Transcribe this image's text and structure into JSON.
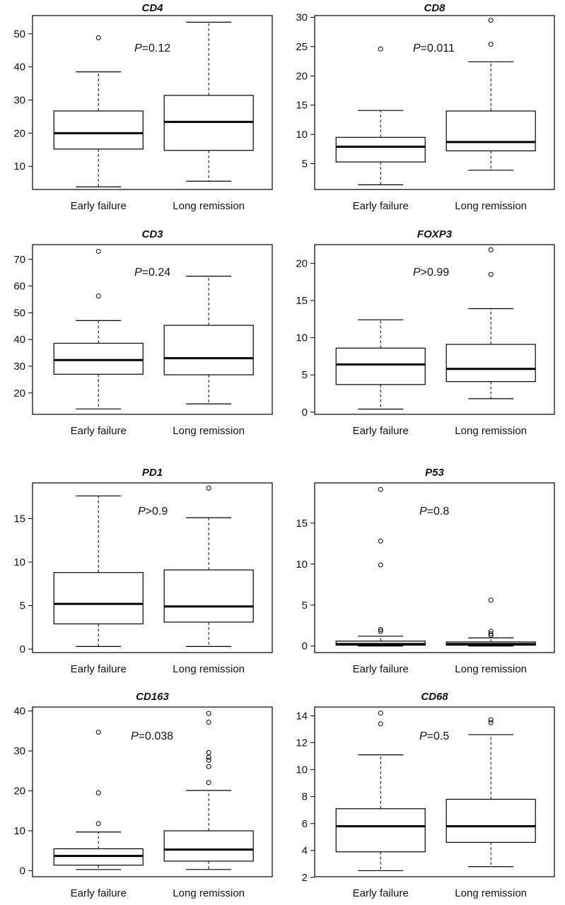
{
  "chart_data": [
    {
      "type": "boxplot",
      "title": "CD4",
      "categories": [
        "Early failure",
        "Long remission"
      ],
      "ylim": [
        3,
        55.5
      ],
      "yticks": [
        10,
        20,
        30,
        40,
        50
      ],
      "p_label": "P",
      "p_text": "=0.12",
      "boxes": [
        {
          "name": "Early failure",
          "whisker_low": 3.8,
          "q1": 15.2,
          "median": 20.0,
          "q3": 26.7,
          "whisker_high": 38.5,
          "outliers": [
            48.8
          ]
        },
        {
          "name": "Long remission",
          "whisker_low": 5.5,
          "q1": 14.8,
          "median": 23.4,
          "q3": 31.4,
          "whisker_high": 53.5,
          "outliers": []
        }
      ]
    },
    {
      "type": "boxplot",
      "title": "CD8",
      "categories": [
        "Early failure",
        "Long remission"
      ],
      "ylim": [
        0.6,
        30.3
      ],
      "yticks": [
        5,
        10,
        15,
        20,
        25,
        30
      ],
      "p_label": "P",
      "p_text": "=0.011",
      "boxes": [
        {
          "name": "Early failure",
          "whisker_low": 1.4,
          "q1": 5.3,
          "median": 7.9,
          "q3": 9.5,
          "whisker_high": 14.1,
          "outliers": [
            24.6
          ]
        },
        {
          "name": "Long remission",
          "whisker_low": 3.9,
          "q1": 7.2,
          "median": 8.7,
          "q3": 14.0,
          "whisker_high": 22.4,
          "outliers": [
            25.4,
            29.5
          ]
        }
      ]
    },
    {
      "type": "boxplot",
      "title": "CD3",
      "categories": [
        "Early failure",
        "Long remission"
      ],
      "ylim": [
        12,
        75.5
      ],
      "yticks": [
        20,
        30,
        40,
        50,
        60,
        70
      ],
      "p_label": "P",
      "p_text": "=0.24",
      "boxes": [
        {
          "name": "Early failure",
          "whisker_low": 14.0,
          "q1": 27.0,
          "median": 32.3,
          "q3": 38.6,
          "whisker_high": 47.1,
          "outliers": [
            56.3,
            73.0
          ]
        },
        {
          "name": "Long remission",
          "whisker_low": 15.9,
          "q1": 26.8,
          "median": 33.0,
          "q3": 45.3,
          "whisker_high": 63.7,
          "outliers": []
        }
      ]
    },
    {
      "type": "boxplot",
      "title": "FOXP3",
      "categories": [
        "Early failure",
        "Long remission"
      ],
      "ylim": [
        -0.3,
        22.5
      ],
      "yticks": [
        0,
        5,
        10,
        15,
        20
      ],
      "p_label": "P",
      "p_text": ">0.99",
      "boxes": [
        {
          "name": "Early failure",
          "whisker_low": 0.4,
          "q1": 3.7,
          "median": 6.4,
          "q3": 8.6,
          "whisker_high": 12.4,
          "outliers": []
        },
        {
          "name": "Long remission",
          "whisker_low": 1.8,
          "q1": 4.1,
          "median": 5.8,
          "q3": 9.1,
          "whisker_high": 13.9,
          "outliers": [
            18.5,
            21.8
          ]
        }
      ]
    },
    {
      "type": "boxplot",
      "title": "PD1",
      "categories": [
        "Early failure",
        "Long remission"
      ],
      "ylim": [
        -0.4,
        19.1
      ],
      "yticks": [
        0,
        5,
        10,
        15
      ],
      "p_label": "P",
      "p_text": ">0.9",
      "boxes": [
        {
          "name": "Early failure",
          "whisker_low": 0.3,
          "q1": 2.9,
          "median": 5.2,
          "q3": 8.8,
          "whisker_high": 17.6,
          "outliers": []
        },
        {
          "name": "Long remission",
          "whisker_low": 0.3,
          "q1": 3.1,
          "median": 4.9,
          "q3": 9.1,
          "whisker_high": 15.1,
          "outliers": [
            18.5
          ]
        }
      ]
    },
    {
      "type": "boxplot",
      "title": "P53",
      "categories": [
        "Early failure",
        "Long remission"
      ],
      "ylim": [
        -0.8,
        19.9
      ],
      "yticks": [
        0,
        5,
        10,
        15
      ],
      "p_label": "P",
      "p_text": "=0.8",
      "boxes": [
        {
          "name": "Early failure",
          "whisker_low": 0.0,
          "q1": 0.1,
          "median": 0.25,
          "q3": 0.6,
          "whisker_high": 1.2,
          "outliers": [
            1.8,
            2.0,
            9.9,
            12.8,
            19.1
          ]
        },
        {
          "name": "Long remission",
          "whisker_low": 0.0,
          "q1": 0.1,
          "median": 0.25,
          "q3": 0.5,
          "whisker_high": 1.0,
          "outliers": [
            1.3,
            1.5,
            1.8,
            5.6
          ]
        }
      ]
    },
    {
      "type": "boxplot",
      "title": "CD163",
      "categories": [
        "Early failure",
        "Long remission"
      ],
      "ylim": [
        -1.5,
        41
      ],
      "yticks": [
        0,
        10,
        20,
        30,
        40
      ],
      "p_label": "P",
      "p_text": "=0.038",
      "boxes": [
        {
          "name": "Early failure",
          "whisker_low": 0.3,
          "q1": 1.4,
          "median": 3.7,
          "q3": 5.5,
          "whisker_high": 9.7,
          "outliers": [
            11.8,
            19.5,
            34.7
          ]
        },
        {
          "name": "Long remission",
          "whisker_low": 0.3,
          "q1": 2.4,
          "median": 5.3,
          "q3": 10.0,
          "whisker_high": 20.1,
          "outliers": [
            22.1,
            26.1,
            27.7,
            28.4,
            29.6,
            37.2,
            39.4
          ]
        }
      ]
    },
    {
      "type": "boxplot",
      "title": "CD68",
      "categories": [
        "Early failure",
        "Long remission"
      ],
      "ylim": [
        2.05,
        14.65
      ],
      "yticks": [
        2,
        4,
        6,
        8,
        10,
        12,
        14
      ],
      "p_label": "P",
      "p_text": "=0.5",
      "boxes": [
        {
          "name": "Early failure",
          "whisker_low": 2.5,
          "q1": 3.9,
          "median": 5.8,
          "q3": 7.1,
          "whisker_high": 11.1,
          "outliers": [
            13.4,
            14.2
          ]
        },
        {
          "name": "Long remission",
          "whisker_low": 2.8,
          "q1": 4.6,
          "median": 5.8,
          "q3": 7.8,
          "whisker_high": 12.6,
          "outliers": [
            13.5,
            13.7
          ]
        }
      ]
    }
  ]
}
